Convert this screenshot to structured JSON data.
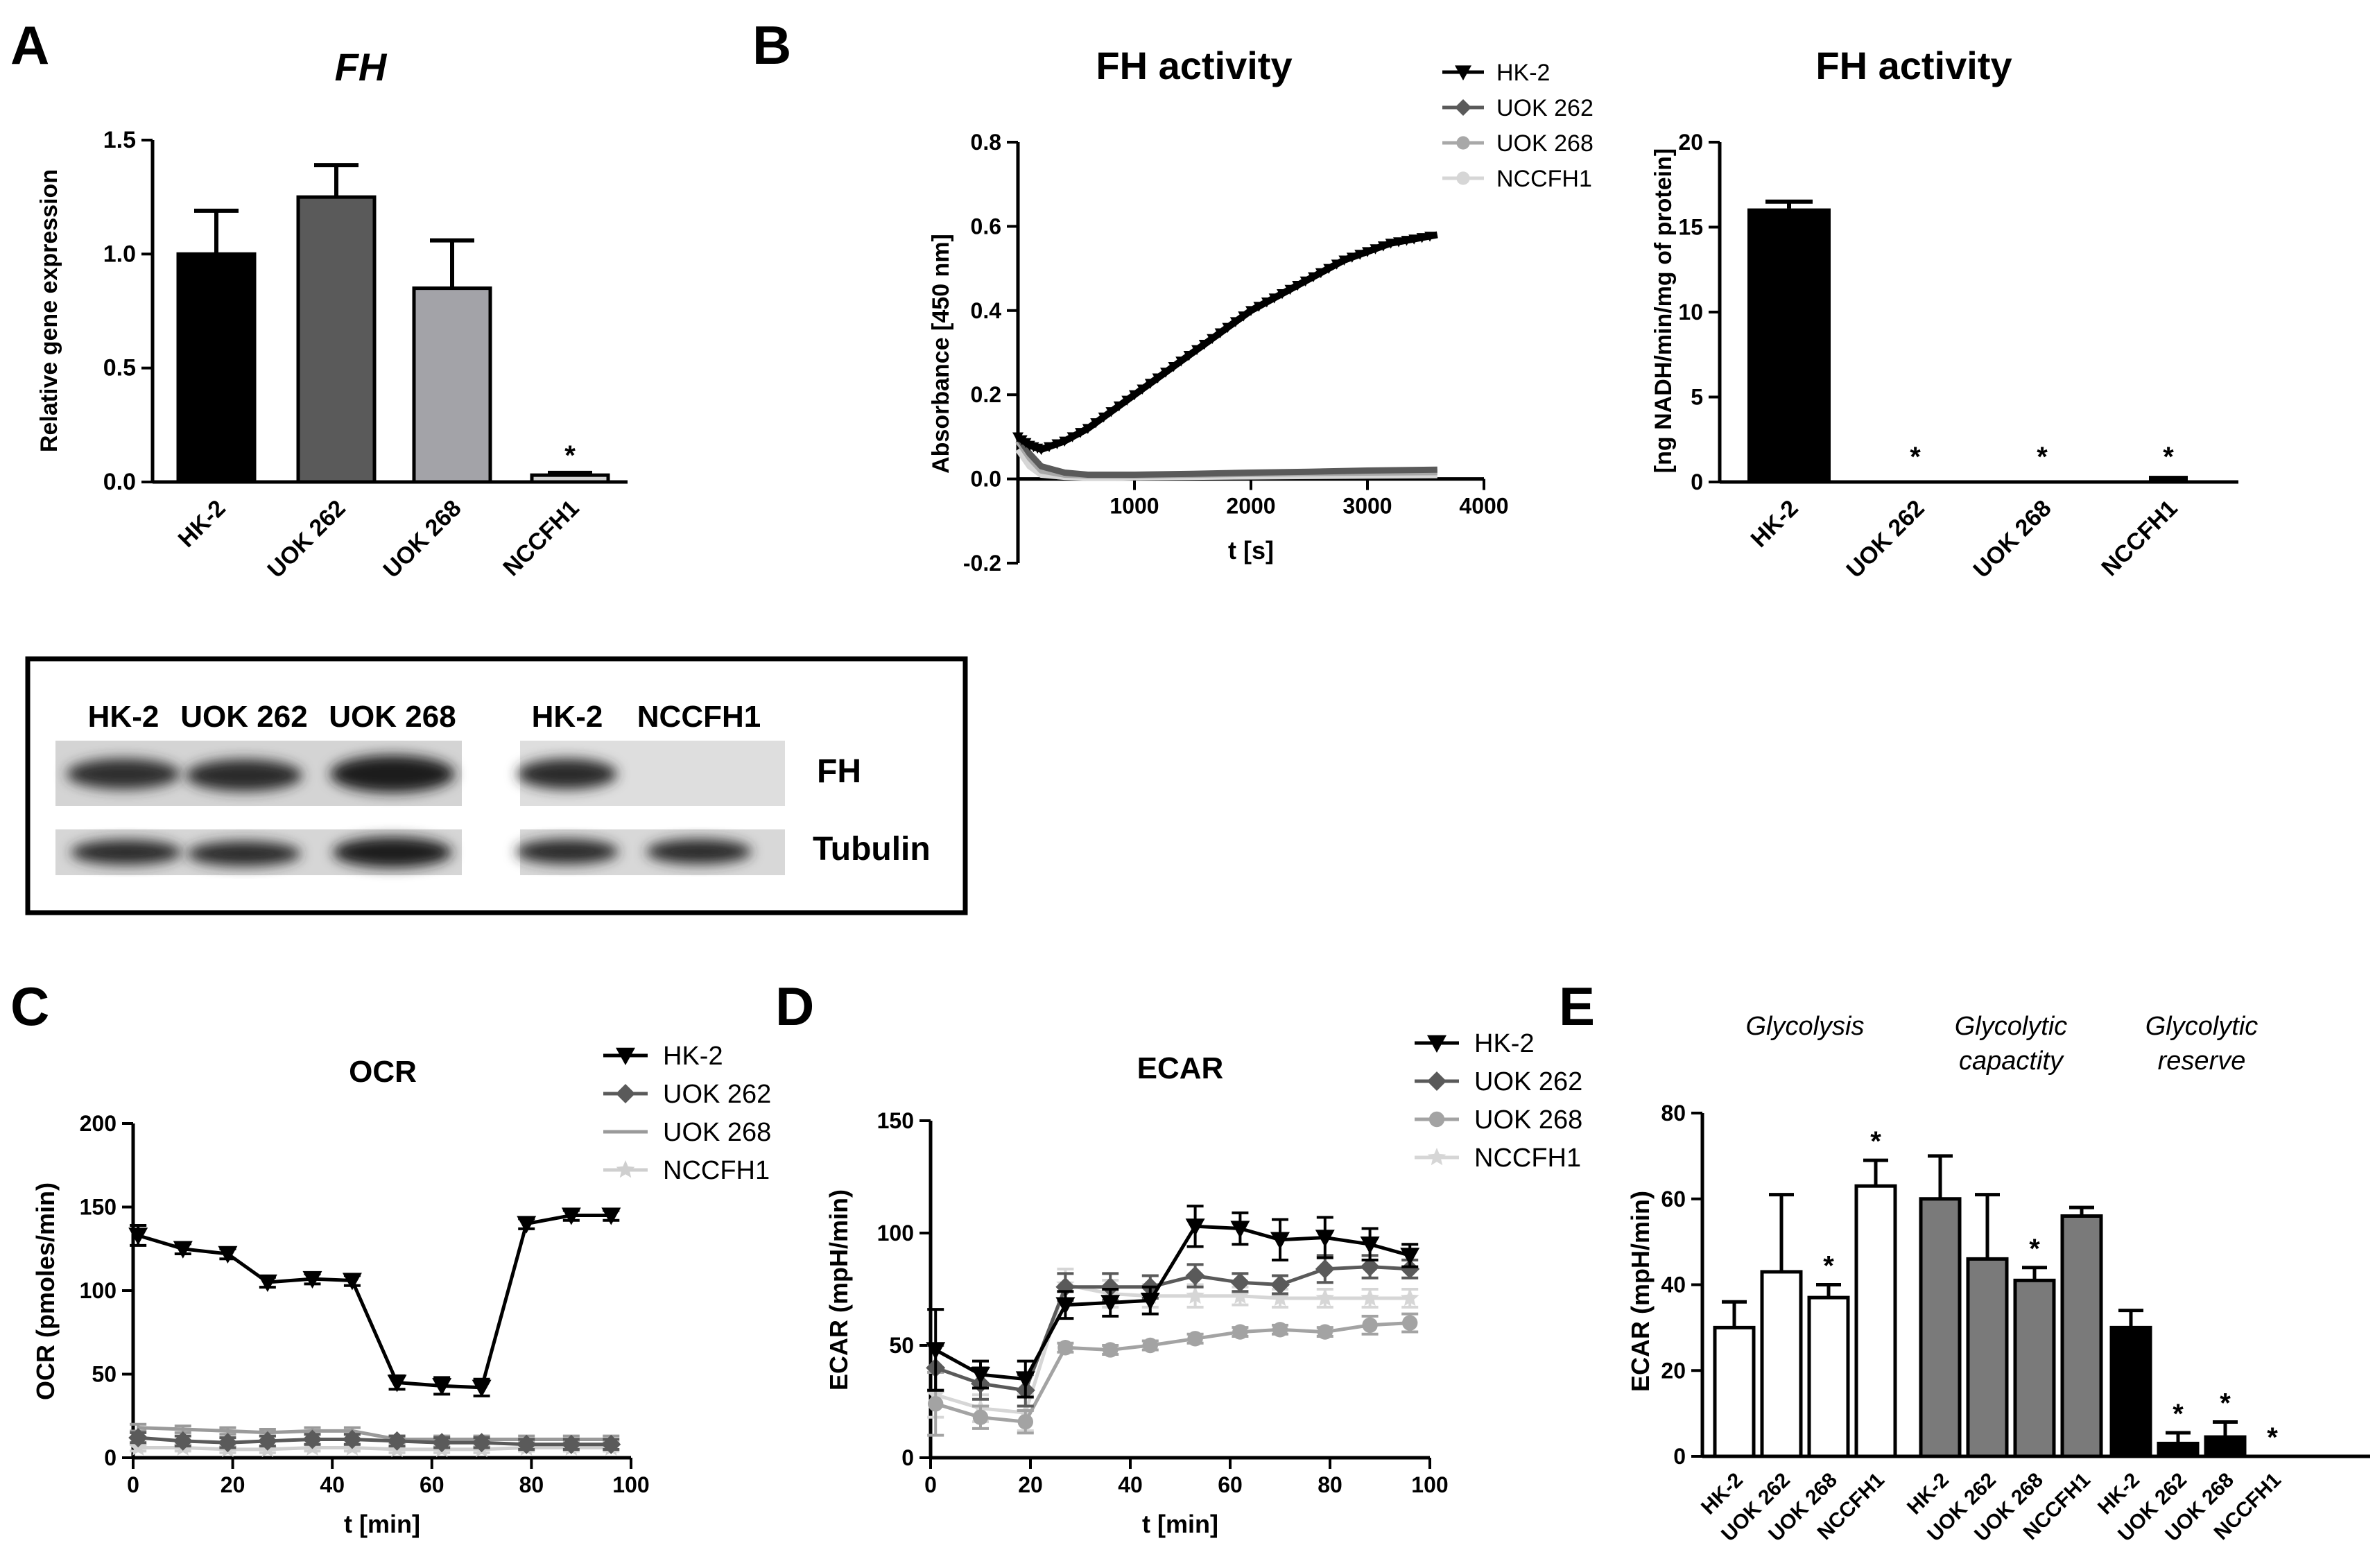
{
  "colors": {
    "black": "#000000",
    "dark_gray": "#5a5a5a",
    "mid_gray": "#a3a3a8",
    "light_gray": "#d3d3d3",
    "uok268_line": "#9a9a9a",
    "nccfh1_line": "#cfcfcf"
  },
  "panels": [
    {
      "id": "A",
      "label": "A"
    },
    {
      "id": "B",
      "label": "B"
    },
    {
      "id": "C",
      "label": "C"
    },
    {
      "id": "D",
      "label": "D"
    },
    {
      "id": "E",
      "label": "E"
    }
  ],
  "blot": {
    "left_lanes": [
      "HK-2",
      "UOK 262",
      "UOK 268"
    ],
    "right_lanes": [
      "HK-2",
      "NCCFH1"
    ],
    "rows": [
      "FH",
      "Tubulin"
    ]
  },
  "chart_data": [
    {
      "id": "A",
      "type": "bar",
      "title": "FH",
      "title_style": "italic",
      "ylabel": "Relative gene expression",
      "xlabel": "",
      "ylim": [
        0,
        1.5
      ],
      "yticks": [
        "0.0",
        "0.5",
        "1.0",
        "1.5"
      ],
      "categories": [
        "HK-2",
        "UOK 262",
        "UOK 268",
        "NCCFH1"
      ],
      "values": [
        1.0,
        1.25,
        0.85,
        0.03
      ],
      "errors": [
        0.19,
        0.14,
        0.21,
        0.01
      ],
      "significance": [
        "",
        "",
        "",
        "*"
      ]
    },
    {
      "id": "B1",
      "type": "line",
      "title": "FH activity",
      "xlabel": "t [s]",
      "ylabel": "Absorbance [450 nm]",
      "xlim": [
        0,
        4000
      ],
      "ylim": [
        -0.2,
        0.8
      ],
      "xticks": [
        "1000",
        "2000",
        "3000",
        "4000"
      ],
      "yticks": [
        "-0.2",
        "0.0",
        "0.2",
        "0.4",
        "0.6",
        "0.8"
      ],
      "series": [
        {
          "name": "HK-2",
          "marker": "triangle-down",
          "x": [
            0,
            100,
            200,
            400,
            600,
            800,
            1000,
            1200,
            1400,
            1600,
            1800,
            2000,
            2200,
            2400,
            2600,
            2800,
            3000,
            3200,
            3400,
            3600
          ],
          "y": [
            0.1,
            0.08,
            0.07,
            0.09,
            0.12,
            0.16,
            0.2,
            0.24,
            0.28,
            0.32,
            0.36,
            0.4,
            0.43,
            0.46,
            0.49,
            0.52,
            0.54,
            0.56,
            0.57,
            0.58
          ]
        },
        {
          "name": "UOK 262",
          "marker": "diamond",
          "x": [
            0,
            100,
            200,
            400,
            600,
            800,
            1000,
            1500,
            2000,
            2500,
            3000,
            3600
          ],
          "y": [
            0.1,
            0.06,
            0.03,
            0.015,
            0.01,
            0.01,
            0.01,
            0.012,
            0.015,
            0.017,
            0.02,
            0.022
          ]
        },
        {
          "name": "UOK 268",
          "marker": "circle",
          "x": [
            0,
            100,
            200,
            400,
            600,
            800,
            1000,
            1500,
            2000,
            2500,
            3000,
            3600
          ],
          "y": [
            0.09,
            0.05,
            0.02,
            0.01,
            0.008,
            0.008,
            0.008,
            0.01,
            0.012,
            0.014,
            0.015,
            0.016
          ]
        },
        {
          "name": "NCCFH1",
          "marker": "circle",
          "x": [
            0,
            100,
            200,
            400,
            600,
            800,
            1000,
            1500,
            2000,
            2500,
            3000,
            3600
          ],
          "y": [
            0.07,
            0.03,
            0.01,
            0.005,
            0.003,
            0.003,
            0.004,
            0.005,
            0.006,
            0.007,
            0.008,
            0.009
          ]
        }
      ]
    },
    {
      "id": "B2",
      "type": "bar",
      "title": "FH activity",
      "ylabel": "[ng NADH/min/mg of protein]",
      "xlabel": "",
      "ylim": [
        0,
        20
      ],
      "yticks": [
        "0",
        "5",
        "10",
        "15",
        "20"
      ],
      "categories": [
        "HK-2",
        "UOK 262",
        "UOK 268",
        "NCCFH1"
      ],
      "values": [
        16.1,
        0.0,
        0.0,
        0.2
      ],
      "errors": [
        0.4,
        0,
        0,
        0
      ],
      "significance": [
        "",
        "*",
        "*",
        "*"
      ]
    },
    {
      "id": "C",
      "type": "line",
      "title": "OCR",
      "xlabel": "t [min]",
      "ylabel": "OCR (pmoles/min)",
      "xlim": [
        0,
        100
      ],
      "ylim": [
        0,
        200
      ],
      "xticks": [
        "0",
        "20",
        "40",
        "60",
        "80",
        "100"
      ],
      "yticks": [
        "0",
        "50",
        "100",
        "150",
        "200"
      ],
      "x": [
        1,
        10,
        19,
        27,
        36,
        44,
        53,
        62,
        70,
        79,
        88,
        96
      ],
      "series": [
        {
          "name": "HK-2",
          "marker": "triangle-down",
          "values": [
            133,
            125,
            122,
            105,
            107,
            106,
            45,
            43,
            42,
            140,
            145,
            145
          ],
          "errors": [
            6,
            3,
            3,
            3,
            3,
            3,
            4,
            5,
            5,
            3,
            3,
            3
          ]
        },
        {
          "name": "UOK 262",
          "marker": "diamond",
          "values": [
            12,
            10,
            9,
            10,
            11,
            11,
            10,
            9,
            9,
            8,
            8,
            8
          ],
          "errors": [
            3,
            3,
            3,
            3,
            3,
            3,
            3,
            3,
            3,
            3,
            3,
            3
          ]
        },
        {
          "name": "UOK 268",
          "marker": "none",
          "values": [
            18,
            17,
            16,
            15,
            16,
            16,
            11,
            11,
            11,
            11,
            11,
            11
          ],
          "errors": [
            2,
            2,
            2,
            2,
            2,
            2,
            2,
            2,
            2,
            2,
            2,
            2
          ]
        },
        {
          "name": "NCCFH1",
          "marker": "star",
          "values": [
            6,
            6,
            5,
            5,
            6,
            6,
            5,
            5,
            5,
            6,
            6,
            6
          ],
          "errors": [
            2,
            2,
            2,
            2,
            2,
            2,
            2,
            2,
            2,
            2,
            2,
            2
          ]
        }
      ]
    },
    {
      "id": "D",
      "type": "line",
      "title": "ECAR",
      "xlabel": "t [min]",
      "ylabel": "ECAR (mpH/min)",
      "xlim": [
        0,
        100
      ],
      "ylim": [
        0,
        150
      ],
      "xticks": [
        "0",
        "20",
        "40",
        "60",
        "80",
        "100"
      ],
      "yticks": [
        "0",
        "50",
        "100",
        "150"
      ],
      "x": [
        1,
        10,
        19,
        27,
        36,
        44,
        53,
        62,
        70,
        79,
        88,
        96
      ],
      "series": [
        {
          "name": "HK-2",
          "marker": "triangle-down",
          "values": [
            48,
            37,
            35,
            68,
            69,
            70,
            103,
            102,
            97,
            98,
            95,
            90
          ],
          "errors": [
            18,
            6,
            8,
            6,
            6,
            6,
            9,
            7,
            9,
            9,
            7,
            5
          ]
        },
        {
          "name": "UOK 262",
          "marker": "diamond",
          "values": [
            40,
            33,
            30,
            76,
            76,
            76,
            81,
            78,
            77,
            84,
            85,
            84
          ],
          "errors": [
            10,
            7,
            7,
            6,
            6,
            5,
            5,
            4,
            4,
            6,
            5,
            4
          ]
        },
        {
          "name": "UOK 268",
          "marker": "circle",
          "values": [
            24,
            18,
            16,
            49,
            48,
            50,
            53,
            56,
            57,
            56,
            59,
            60
          ],
          "errors": [
            14,
            5,
            5,
            2,
            2,
            2,
            2,
            2,
            2,
            2,
            4,
            4
          ]
        },
        {
          "name": "NCCFH1",
          "marker": "star",
          "values": [
            28,
            22,
            20,
            77,
            73,
            72,
            72,
            72,
            71,
            71,
            71,
            71
          ],
          "errors": [
            10,
            6,
            8,
            7,
            6,
            5,
            5,
            4,
            4,
            4,
            4,
            4
          ]
        }
      ]
    },
    {
      "id": "E",
      "type": "bar",
      "ylabel": "ECAR (mpH/min)",
      "xlabel": "",
      "ylim": [
        0,
        80
      ],
      "yticks": [
        "0",
        "20",
        "40",
        "60",
        "80"
      ],
      "groups": [
        {
          "name_lines": [
            "Glycolysis"
          ],
          "fill": "#ffffff",
          "categories": [
            "HK-2",
            "UOK 262",
            "UOK 268",
            "NCCFH1"
          ],
          "values": [
            30,
            43,
            37,
            63
          ],
          "errors": [
            6,
            18,
            3,
            6
          ],
          "significance": [
            "",
            "",
            "*",
            "*"
          ]
        },
        {
          "name_lines": [
            "Glycolytic",
            "capactity"
          ],
          "fill": "#7a7a7a",
          "categories": [
            "HK-2",
            "UOK 262",
            "UOK 268",
            "NCCFH1"
          ],
          "values": [
            60,
            46,
            41,
            56
          ],
          "errors": [
            10,
            15,
            3,
            2
          ],
          "significance": [
            "",
            "",
            "*",
            ""
          ]
        },
        {
          "name_lines": [
            "Glycolytic",
            "reserve"
          ],
          "fill": "#000000",
          "categories": [
            "HK-2",
            "UOK 262",
            "UOK 268",
            "NCCFH1"
          ],
          "values": [
            30,
            3,
            4.5,
            0
          ],
          "errors": [
            4,
            2.5,
            3.5,
            0
          ],
          "significance": [
            "",
            "*",
            "*",
            "*"
          ]
        }
      ]
    }
  ]
}
